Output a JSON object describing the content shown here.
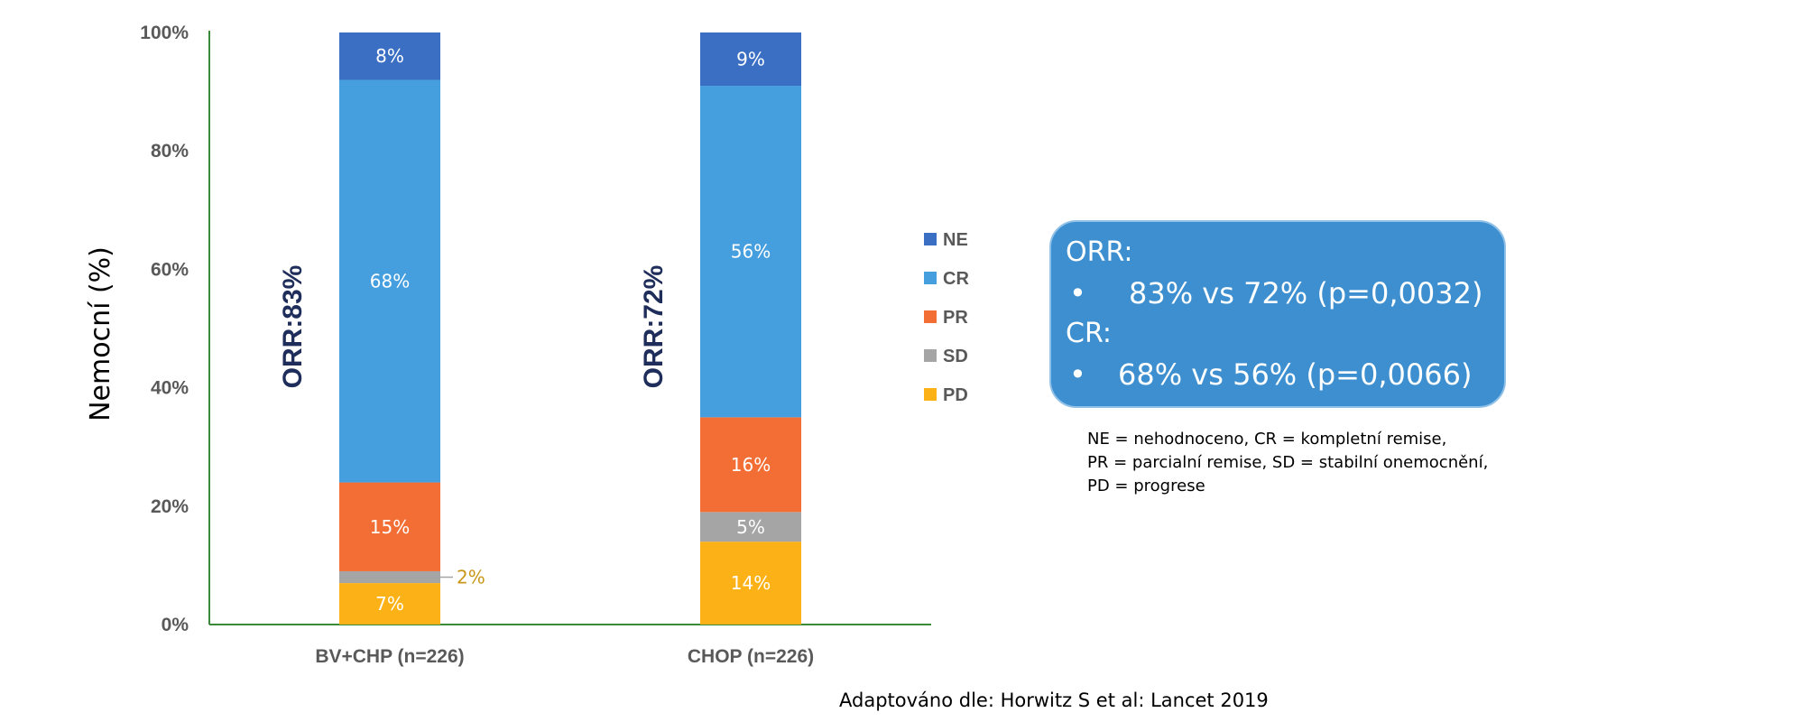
{
  "chart_data": {
    "type": "bar",
    "stacked": true,
    "ylabel": "Nemocní (%)",
    "ylim": [
      0,
      100
    ],
    "yticks": [
      "0%",
      "20%",
      "40%",
      "60%",
      "80%",
      "100%"
    ],
    "categories": [
      "BV+CHP (n=226)",
      "CHOP (n=226)"
    ],
    "series": [
      {
        "name": "PD",
        "color": "#fcb216",
        "values": [
          7,
          14
        ],
        "labels": [
          "7%",
          "14%"
        ]
      },
      {
        "name": "SD",
        "color": "#a5a5a5",
        "values": [
          2,
          5
        ],
        "labels": [
          "2%",
          "5%"
        ]
      },
      {
        "name": "PR",
        "color": "#f26e34",
        "values": [
          15,
          16
        ],
        "labels": [
          "15%",
          "16%"
        ]
      },
      {
        "name": "CR",
        "color": "#459ede",
        "values": [
          68,
          56
        ],
        "labels": [
          "68%",
          "56%"
        ]
      },
      {
        "name": "NE",
        "color": "#3a6fc4",
        "values": [
          8,
          9
        ],
        "labels": [
          "8%",
          "9%"
        ]
      }
    ],
    "bar_annotations": [
      "ORR:83%",
      "ORR:72%"
    ],
    "legend": [
      "NE",
      "CR",
      "PR",
      "SD",
      "PD"
    ],
    "legend_position": "right",
    "axis_color": "#3a8a3a"
  },
  "summary": {
    "orr_head": "ORR:",
    "orr_bullet": "83% vs 72% (p=0,0032)",
    "cr_head": "CR:",
    "cr_bullet": "68% vs 56% (p=0,0066)",
    "bullet_char": "•"
  },
  "abbreviations": [
    "NE = nehodnoceno, CR = kompletní remise,",
    "PR = parcialní remise, SD = stabilní onemocnění,",
    "PD = progrese"
  ],
  "source": "Adaptováno dle: Horwitz S et al: Lancet 2019"
}
